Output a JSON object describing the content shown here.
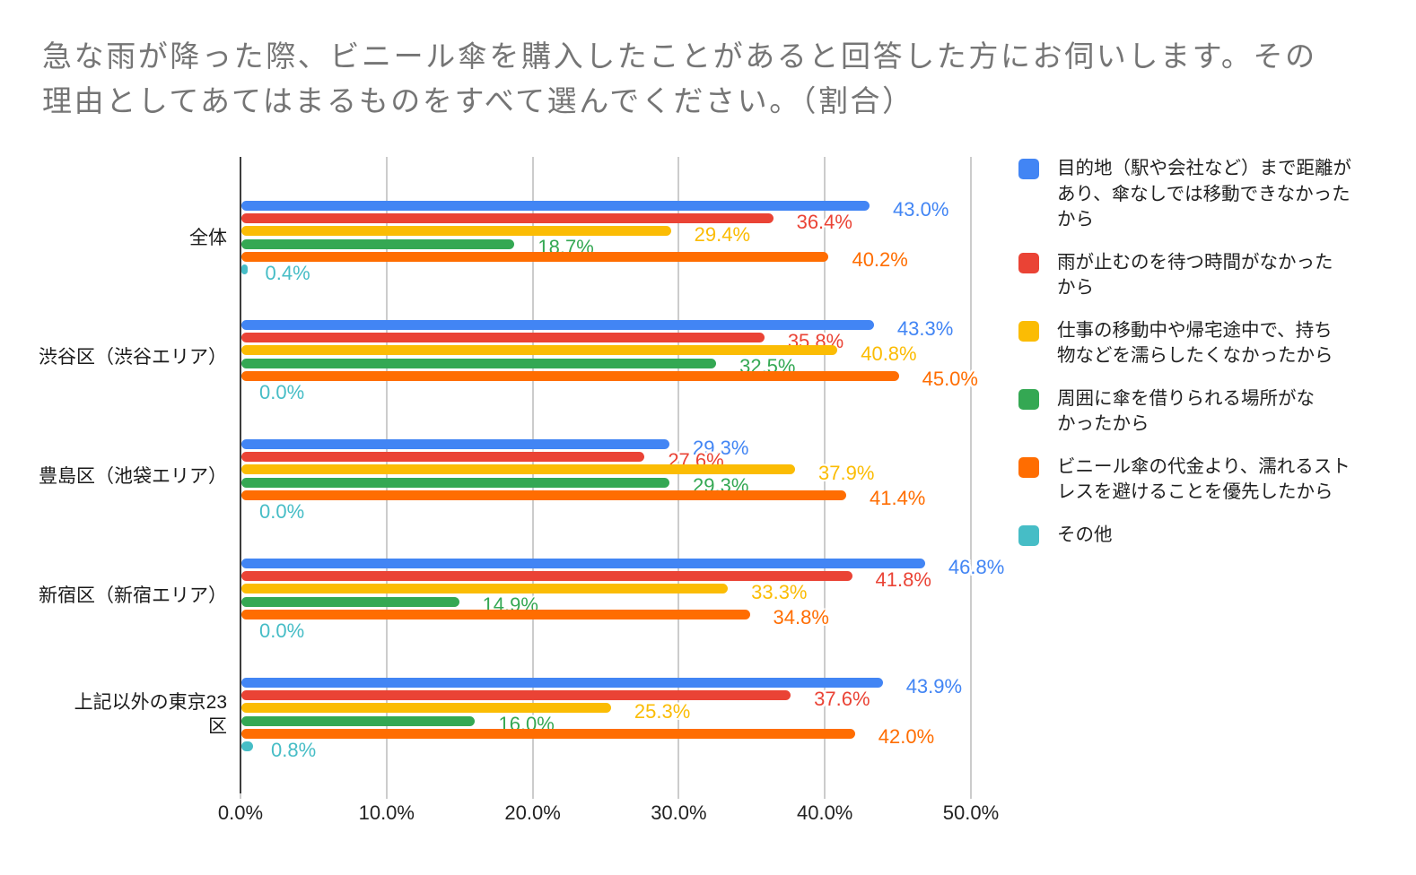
{
  "title": "急な雨が降った際、ビニール傘を購入したことがあると回答した方にお伺いします。その\n理由としてあてはまるものをすべて選んでください。（割合）",
  "chart_data": {
    "type": "bar",
    "orientation": "horizontal",
    "categories": [
      "全体",
      "渋谷区（渋谷エリア）",
      "豊島区（池袋エリア）",
      "新宿区（新宿エリア）",
      "上記以外の東京23\n区"
    ],
    "series": [
      {
        "name": "目的地（駅や会社など）まで距離が\nあり、傘なしでは移動できなかった\nから",
        "color": "#4285F4",
        "values": [
          43.0,
          43.3,
          29.3,
          46.8,
          43.9
        ]
      },
      {
        "name": "雨が止むのを待つ時間がなかった\nから",
        "color": "#EA4335",
        "values": [
          36.4,
          35.8,
          27.6,
          41.8,
          37.6
        ]
      },
      {
        "name": "仕事の移動中や帰宅途中で、持ち\n物などを濡らしたくなかったから",
        "color": "#FBBC04",
        "values": [
          29.4,
          40.8,
          37.9,
          33.3,
          25.3
        ]
      },
      {
        "name": "周囲に傘を借りられる場所がな\nかったから",
        "color": "#34A853",
        "values": [
          18.7,
          32.5,
          29.3,
          14.9,
          16.0
        ]
      },
      {
        "name": "ビニール傘の代金より、濡れるスト\nレスを避けることを優先したから",
        "color": "#FF6D01",
        "values": [
          40.2,
          45.0,
          41.4,
          34.8,
          42.0
        ]
      },
      {
        "name": "その他",
        "color": "#46BDC6",
        "values": [
          0.4,
          0.0,
          0.0,
          0.0,
          0.8
        ]
      }
    ],
    "x_tick_labels": [
      "0.0%",
      "10.0%",
      "20.0%",
      "30.0%",
      "40.0%",
      "50.0%"
    ],
    "xlim": [
      0,
      50
    ],
    "grid": true,
    "legend_position": "right",
    "value_label_format": "one_decimal_percent"
  }
}
